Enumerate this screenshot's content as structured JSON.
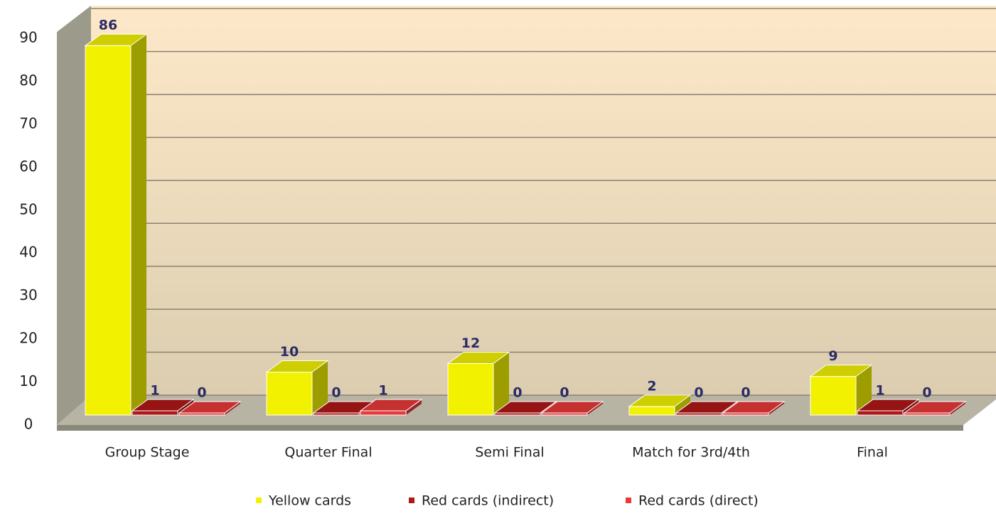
{
  "chart_data": {
    "type": "bar3d",
    "categories": [
      "Group Stage",
      "Quarter Final",
      "Semi Final",
      "Match for 3rd/4th",
      "Final"
    ],
    "series": [
      {
        "name": "Yellow cards",
        "color": "#f2f200",
        "values": [
          86,
          10,
          12,
          2,
          9
        ]
      },
      {
        "name": "Red cards (indirect)",
        "color": "#b01818",
        "values": [
          1,
          0,
          0,
          0,
          1
        ]
      },
      {
        "name": "Red cards (direct)",
        "color": "#e83a3a",
        "values": [
          0,
          1,
          0,
          0,
          0
        ]
      }
    ],
    "ylim": [
      0,
      90
    ],
    "yticks": [
      0,
      10,
      20,
      30,
      40,
      50,
      60,
      70,
      80,
      90
    ],
    "grid": true,
    "legend": "bottom"
  }
}
